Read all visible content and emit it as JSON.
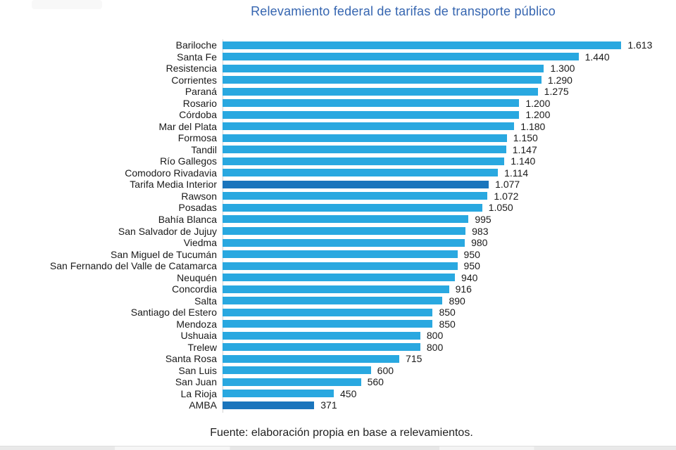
{
  "title": "Relevamiento federal de tarifas de transporte público",
  "footer": "Fuente: elaboración propia en base a relevamientos.",
  "colors": {
    "bar": "#29a8e0",
    "bar_highlight": "#1b75bc",
    "title_text": "#3565b0",
    "axis_line": "#d3d3d3",
    "label_text": "#1a1a1a"
  },
  "chart_data": {
    "type": "bar",
    "orientation": "horizontal",
    "title": "Relevamiento federal de tarifas de transporte público",
    "xlabel": "",
    "ylabel": "",
    "xlim": [
      0,
      1800
    ],
    "grid": false,
    "legend": false,
    "categories": [
      "Bariloche",
      "Santa Fe",
      "Resistencia",
      "Corrientes",
      "Paraná",
      "Rosario",
      "Córdoba",
      "Mar del Plata",
      "Formosa",
      "Tandil",
      "Río Gallegos",
      "Comodoro Rivadavia",
      "Tarifa Media Interior",
      "Rawson",
      "Posadas",
      "Bahía Blanca",
      "San Salvador de Jujuy",
      "Viedma",
      "San Miguel de Tucumán",
      "San Fernando del Valle de Catamarca",
      "Neuquén",
      "Concordia",
      "Salta",
      "Santiago del Estero",
      "Mendoza",
      "Ushuaia",
      "Trelew",
      "Santa Rosa",
      "San Luis",
      "San Juan",
      "La Rioja",
      "AMBA"
    ],
    "values": [
      1613,
      1440,
      1300,
      1290,
      1275,
      1200,
      1200,
      1180,
      1150,
      1147,
      1140,
      1114,
      1077,
      1072,
      1050,
      995,
      983,
      980,
      950,
      950,
      940,
      916,
      890,
      850,
      850,
      800,
      800,
      715,
      600,
      560,
      450,
      371
    ],
    "value_labels": [
      "1.613",
      "1.440",
      "1.300",
      "1.290",
      "1.275",
      "1.200",
      "1.200",
      "1.180",
      "1.150",
      "1.147",
      "1.140",
      "1.114",
      "1.077",
      "1.072",
      "1.050",
      "995",
      "983",
      "980",
      "950",
      "950",
      "940",
      "916",
      "890",
      "850",
      "850",
      "800",
      "800",
      "715",
      "600",
      "560",
      "450",
      "371"
    ],
    "highlight_indices": [
      12,
      31
    ],
    "highlighted_categories": [
      "Tarifa Media Interior",
      "AMBA"
    ],
    "source_note": "Fuente: elaboración propia en base a relevamientos."
  }
}
